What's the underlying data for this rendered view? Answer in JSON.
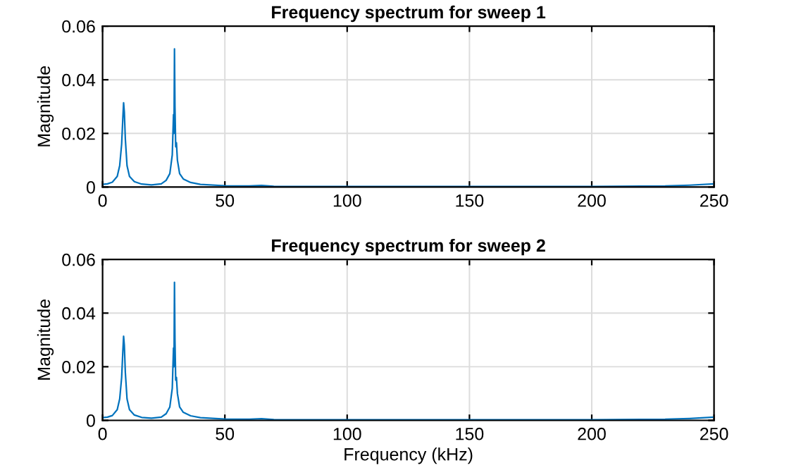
{
  "chart_data": [
    {
      "type": "line",
      "title": "Frequency spectrum for sweep 1",
      "ylabel": "Magnitude",
      "xlim": [
        0,
        250
      ],
      "xticks": [
        0,
        50,
        100,
        150,
        200,
        250
      ],
      "ylim": [
        0,
        0.06
      ],
      "yticks": [
        0,
        0.02,
        0.04,
        0.06
      ],
      "grid": true,
      "series": [
        {
          "color": "#0072bd",
          "x": [
            0,
            2,
            4,
            6,
            7,
            7.8,
            8.3,
            8.6,
            8.9,
            9.3,
            10,
            11,
            13,
            16,
            20,
            24,
            26,
            27.5,
            28.5,
            29,
            29.2,
            29.4,
            29.6,
            29.9,
            30.2,
            30.6,
            31.5,
            33,
            36,
            40,
            50,
            60,
            65,
            70,
            100,
            150,
            200,
            230,
            240,
            250
          ],
          "values": [
            0.001,
            0.0012,
            0.0018,
            0.004,
            0.008,
            0.016,
            0.026,
            0.0314,
            0.028,
            0.018,
            0.008,
            0.004,
            0.002,
            0.0011,
            0.0008,
            0.0012,
            0.0025,
            0.005,
            0.012,
            0.027,
            0.02,
            0.0515,
            0.03,
            0.015,
            0.0165,
            0.01,
            0.005,
            0.003,
            0.0017,
            0.001,
            0.0005,
            0.0004,
            0.0006,
            0.0003,
            0.0002,
            0.0002,
            0.0002,
            0.0004,
            0.0007,
            0.0012
          ]
        }
      ]
    },
    {
      "type": "line",
      "title": "Frequency spectrum for sweep 2",
      "ylabel": "Magnitude",
      "xlabel": "Frequency (kHz)",
      "xlim": [
        0,
        250
      ],
      "xticks": [
        0,
        50,
        100,
        150,
        200,
        250
      ],
      "ylim": [
        0,
        0.06
      ],
      "yticks": [
        0,
        0.02,
        0.04,
        0.06
      ],
      "grid": true,
      "series": [
        {
          "color": "#0072bd",
          "x": [
            0,
            2,
            4,
            6,
            7,
            7.8,
            8.3,
            8.6,
            8.9,
            9.3,
            10,
            11,
            13,
            16,
            20,
            24,
            26,
            27.5,
            28.5,
            29,
            29.2,
            29.4,
            29.6,
            29.9,
            30.2,
            30.6,
            31.5,
            33,
            36,
            40,
            50,
            60,
            65,
            70,
            100,
            150,
            200,
            230,
            240,
            250
          ],
          "values": [
            0.001,
            0.0012,
            0.0018,
            0.004,
            0.008,
            0.016,
            0.026,
            0.0314,
            0.028,
            0.018,
            0.008,
            0.004,
            0.002,
            0.0011,
            0.0008,
            0.0012,
            0.0025,
            0.005,
            0.012,
            0.027,
            0.02,
            0.0515,
            0.03,
            0.015,
            0.016,
            0.01,
            0.005,
            0.003,
            0.0017,
            0.001,
            0.0005,
            0.0004,
            0.0006,
            0.0003,
            0.0002,
            0.0002,
            0.0002,
            0.0004,
            0.0007,
            0.0012
          ]
        }
      ]
    }
  ]
}
